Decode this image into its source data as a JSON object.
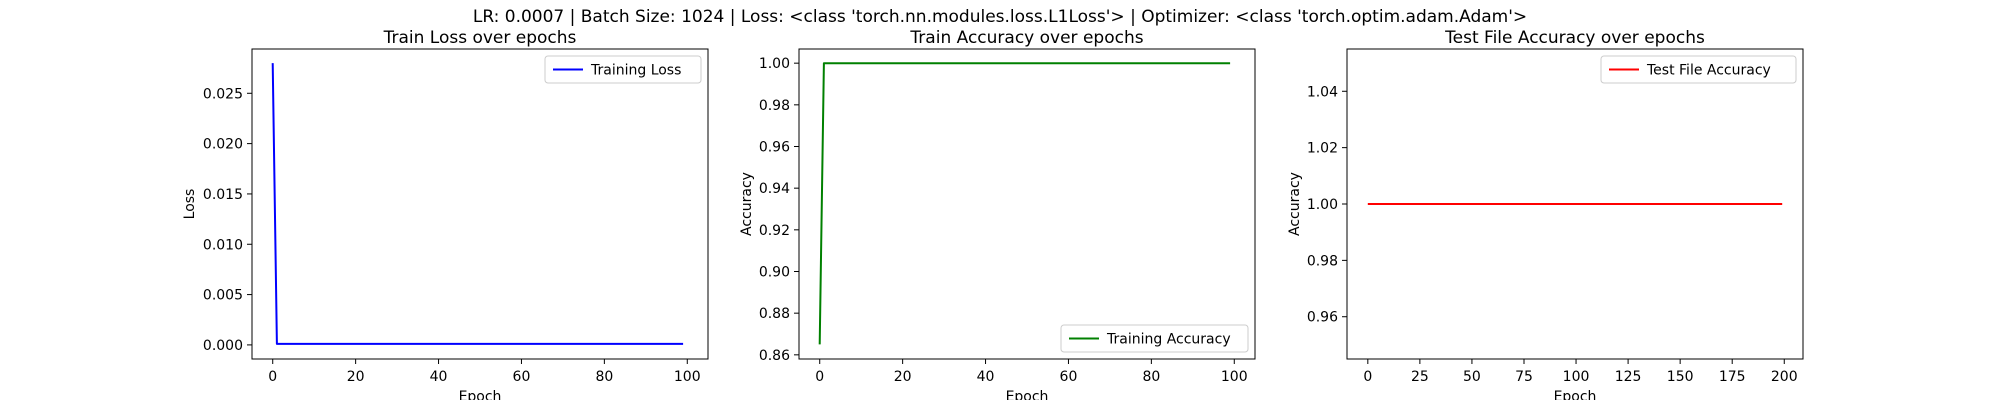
{
  "figure": {
    "suptitle": "LR: 0.0007 | Batch Size: 1024 | Loss: <class 'torch.nn.modules.loss.L1Loss'> | Optimizer: <class 'torch.optim.adam.Adam'>"
  },
  "colors": {
    "blue": "#0000ff",
    "green": "#008000",
    "red": "#ff0000"
  },
  "chart_data": [
    {
      "type": "line",
      "title": "Train Loss over epochs",
      "xlabel": "Epoch",
      "ylabel": "Loss",
      "xlim": [
        -5,
        105
      ],
      "ylim": [
        -0.0014,
        0.0294
      ],
      "xticks": [
        0,
        20,
        40,
        60,
        80,
        100
      ],
      "xtick_labels": [
        "0",
        "20",
        "40",
        "60",
        "80",
        "100"
      ],
      "yticks": [
        0,
        0.005,
        0.01,
        0.015,
        0.02,
        0.025
      ],
      "ytick_labels": [
        "0.000",
        "0.005",
        "0.010",
        "0.015",
        "0.020",
        "0.025"
      ],
      "legend_position": "upper right",
      "series": [
        {
          "name": "Training Loss",
          "color": "#0000ff",
          "x": [
            0,
            1,
            99
          ],
          "y": [
            0.028,
            0.0001,
            0.0001
          ]
        }
      ]
    },
    {
      "type": "line",
      "title": "Train Accuracy over epochs",
      "xlabel": "Epoch",
      "ylabel": "Accuracy",
      "xlim": [
        -5,
        105
      ],
      "ylim": [
        0.858,
        1.0068
      ],
      "xticks": [
        0,
        20,
        40,
        60,
        80,
        100
      ],
      "xtick_labels": [
        "0",
        "20",
        "40",
        "60",
        "80",
        "100"
      ],
      "yticks": [
        0.86,
        0.88,
        0.9,
        0.92,
        0.94,
        0.96,
        0.98,
        1.0
      ],
      "ytick_labels": [
        "0.86",
        "0.88",
        "0.90",
        "0.92",
        "0.94",
        "0.96",
        "0.98",
        "1.00"
      ],
      "legend_position": "lower right",
      "series": [
        {
          "name": "Training Accuracy",
          "color": "#008000",
          "x": [
            0,
            1,
            99
          ],
          "y": [
            0.865,
            1.0,
            1.0
          ]
        }
      ]
    },
    {
      "type": "line",
      "title": "Test File Accuracy over epochs",
      "xlabel": "Epoch",
      "ylabel": "Accuracy",
      "xlim": [
        -10,
        209
      ],
      "ylim": [
        0.945,
        1.055
      ],
      "xticks": [
        0,
        25,
        50,
        75,
        100,
        125,
        150,
        175,
        200
      ],
      "xtick_labels": [
        "0",
        "25",
        "50",
        "75",
        "100",
        "125",
        "150",
        "175",
        "200"
      ],
      "yticks": [
        0.96,
        0.98,
        1.0,
        1.02,
        1.04
      ],
      "ytick_labels": [
        "0.96",
        "0.98",
        "1.00",
        "1.02",
        "1.04"
      ],
      "legend_position": "upper right",
      "series": [
        {
          "name": "Test File Accuracy",
          "color": "#ff0000",
          "x": [
            0,
            199
          ],
          "y": [
            1.0,
            1.0
          ]
        }
      ]
    }
  ]
}
